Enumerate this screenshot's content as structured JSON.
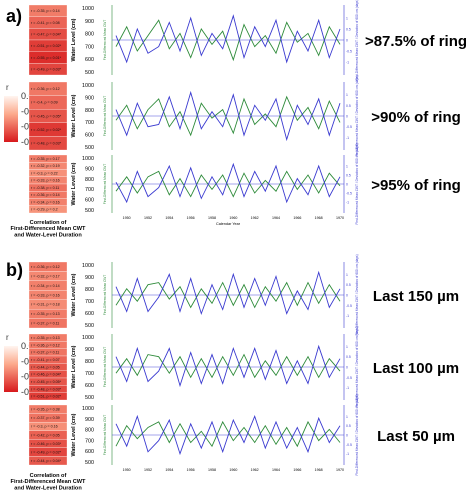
{
  "panels": [
    {
      "letter": "a)",
      "corr_title": "Correlation of\nFirst-Differenced Mean CWT\nand Water-Level Duration",
      "colorbar": {
        "label": "r",
        "ticks": [
          "0.0",
          "-0.2",
          "-0.4",
          "-0.6"
        ],
        "range": [
          -0.6,
          0.0
        ]
      }
    },
    {
      "letter": "b)",
      "corr_title": "Correlation of\nFirst-Differenced Mean CWT\nand Water-Level Duration",
      "colorbar": {
        "label": "r",
        "ticks": [
          "0.0",
          "-0.2",
          "-0.4",
          "-0.6"
        ],
        "range": [
          -0.6,
          0.0
        ]
      }
    }
  ],
  "x_axis_label": "Calendar Year",
  "chart_data": [
    {
      "type": "line",
      "group": "a",
      "row": 0,
      "label": ">87.5% of ring",
      "ylabel_left": "Water Level (cm)",
      "ylim_left": [
        500,
        1000
      ],
      "ylabel_right": "First-Differenced Mean CWT / Deviation of 600 cm (days)",
      "ylim_right": [
        -1.5,
        1.5
      ],
      "yticks_left": [
        "1000",
        "900",
        "800",
        "700",
        "600",
        "500"
      ],
      "x": [
        1949,
        1950,
        1951,
        1952,
        1953,
        1954,
        1955,
        1956,
        1957,
        1958,
        1959,
        1960,
        1961,
        1962,
        1963,
        1964,
        1965,
        1966,
        1967,
        1968,
        1969,
        1970
      ],
      "xticks": [
        "1950",
        "1952",
        "1954",
        "1956",
        "1958",
        "1960",
        "1962",
        "1964",
        "1966",
        "1968",
        "1970"
      ],
      "series": [
        {
          "color": "#2e8b3a",
          "values": [
            -0.3,
            0.6,
            -0.5,
            0.2,
            0.9,
            -0.4,
            0.3,
            -0.8,
            0.5,
            -0.2,
            0.4,
            -0.9,
            0.7,
            -0.3,
            0.2,
            -0.6,
            0.8,
            -0.1,
            0.3,
            -0.7,
            0.6,
            -0.2
          ]
        },
        {
          "color": "#3a3ad0",
          "values": [
            0.2,
            -1.0,
            0.5,
            -0.6,
            -0.3,
            0.8,
            -0.5,
            1.0,
            -0.7,
            0.3,
            -0.4,
            1.1,
            -0.8,
            0.6,
            -0.3,
            0.9,
            -1.0,
            0.4,
            -0.5,
            0.9,
            -0.8,
            0.5
          ]
        }
      ],
      "correlations": [
        {
          "text": "r = -0.35, p = 0.14",
          "value": -0.35
        },
        {
          "text": "r = -0.41, p = 0.08",
          "value": -0.41
        },
        {
          "text": "r = -0.47, p = 0.04*",
          "value": -0.47
        },
        {
          "text": "r = -0.51, p = 0.02*",
          "value": -0.51
        },
        {
          "text": "r = -0.55, p = 0.01*",
          "value": -0.55
        },
        {
          "text": "r = -0.49, p = 0.03*",
          "value": -0.49
        }
      ]
    },
    {
      "type": "line",
      "group": "a",
      "row": 1,
      "label": ">90% of ring",
      "ylabel_left": "Water Level (cm)",
      "ylim_left": [
        500,
        1000
      ],
      "ylabel_right": "First-Differenced Mean CWT / Deviation of 600 cm (days)",
      "ylim_right": [
        -1.5,
        1.5
      ],
      "yticks_left": [
        "1000",
        "900",
        "800",
        "700",
        "600",
        "500"
      ],
      "x": [
        1949,
        1950,
        1951,
        1952,
        1953,
        1954,
        1955,
        1956,
        1957,
        1958,
        1959,
        1960,
        1961,
        1962,
        1963,
        1964,
        1965,
        1966,
        1967,
        1968,
        1969,
        1970
      ],
      "xticks": [
        "1950",
        "1952",
        "1954",
        "1956",
        "1958",
        "1960",
        "1962",
        "1964",
        "1966",
        "1968",
        "1970"
      ],
      "series": [
        {
          "color": "#2e8b3a",
          "values": [
            -0.2,
            0.5,
            -0.6,
            0.3,
            0.8,
            -0.5,
            0.2,
            -0.9,
            0.6,
            -0.1,
            0.3,
            -0.8,
            0.8,
            -0.4,
            0.1,
            -0.5,
            0.9,
            -0.2,
            0.4,
            -0.6,
            0.7,
            -0.3
          ]
        },
        {
          "color": "#3a3ad0",
          "values": [
            0.3,
            -0.9,
            0.6,
            -0.5,
            -0.4,
            0.9,
            -0.6,
            1.1,
            -0.6,
            0.2,
            -0.5,
            1.0,
            -0.9,
            0.5,
            -0.2,
            0.8,
            -1.1,
            0.5,
            -0.4,
            0.8,
            -0.9,
            0.6
          ]
        }
      ],
      "correlations": [
        {
          "text": "r = -0.36, p = 0.12",
          "value": -0.36
        },
        {
          "text": "r = -0.4, p = 0.09",
          "value": -0.4
        },
        {
          "text": "r = -0.45, p = 0.05*",
          "value": -0.45
        },
        {
          "text": "r = -0.52, p = 0.02*",
          "value": -0.52
        },
        {
          "text": "r = -0.48, p = 0.03*",
          "value": -0.48
        }
      ]
    },
    {
      "type": "line",
      "group": "a",
      "row": 2,
      "label": ">95% of ring",
      "ylabel_left": "Water Level (cm)",
      "ylim_left": [
        500,
        1000
      ],
      "ylabel_right": "First-Differenced Mean CWT / Deviation of 600 cm (days)",
      "ylim_right": [
        -1.5,
        1.5
      ],
      "yticks_left": [
        "1000",
        "900",
        "800",
        "700",
        "600",
        "500"
      ],
      "x": [
        1949,
        1950,
        1951,
        1952,
        1953,
        1954,
        1955,
        1956,
        1957,
        1958,
        1959,
        1960,
        1961,
        1962,
        1963,
        1964,
        1965,
        1966,
        1967,
        1968,
        1969,
        1970
      ],
      "xticks": [
        "1950",
        "1952",
        "1954",
        "1956",
        "1958",
        "1960",
        "1962",
        "1964",
        "1966",
        "1968",
        "1970"
      ],
      "series": [
        {
          "color": "#2e8b3a",
          "values": [
            -0.4,
            0.4,
            -0.5,
            0.4,
            0.7,
            -0.6,
            0.3,
            -0.7,
            0.5,
            -0.3,
            0.5,
            -0.7,
            0.6,
            -0.5,
            0.2,
            -0.4,
            0.7,
            -0.3,
            0.5,
            -0.5,
            0.6,
            -0.1
          ]
        },
        {
          "color": "#3a3ad0",
          "values": [
            0.1,
            -1.0,
            0.7,
            -0.7,
            -0.2,
            1.0,
            -0.7,
            0.9,
            -0.8,
            0.4,
            -0.6,
            1.1,
            -0.7,
            0.7,
            -0.4,
            1.0,
            -1.0,
            0.3,
            -0.6,
            1.0,
            -0.7,
            0.4
          ]
        }
      ],
      "correlations": [
        {
          "text": "r = -0.35, p = 0.17",
          "value": -0.35
        },
        {
          "text": "r = -0.32, p = 0.19",
          "value": -0.32
        },
        {
          "text": "r = -0.3, p = 0.22",
          "value": -0.3
        },
        {
          "text": "r = -0.33, p = 0.16",
          "value": -0.33
        },
        {
          "text": "r = -0.38, p = 0.11",
          "value": -0.38
        },
        {
          "text": "r = -0.36, p = 0.14",
          "value": -0.36
        },
        {
          "text": "r = -0.34, p = 0.16",
          "value": -0.34
        },
        {
          "text": "r = -0.29, p = 0.2",
          "value": -0.29
        }
      ]
    },
    {
      "type": "line",
      "group": "b",
      "row": 0,
      "label": "Last 150 µm",
      "ylabel_left": "Water Level (cm)",
      "ylim_left": [
        500,
        1000
      ],
      "ylabel_right": "First-Differenced Mean CWT / Deviation of 600 cm (days)",
      "ylim_right": [
        -1.5,
        1.5
      ],
      "yticks_left": [
        "1000",
        "900",
        "800",
        "700",
        "600",
        "500"
      ],
      "x": [
        1949,
        1950,
        1951,
        1952,
        1953,
        1954,
        1955,
        1956,
        1957,
        1958,
        1959,
        1960,
        1961,
        1962,
        1963,
        1964,
        1965,
        1966,
        1967,
        1968,
        1969,
        1970
      ],
      "xticks": [
        "1950",
        "1952",
        "1954",
        "1956",
        "1958",
        "1960",
        "1962",
        "1964",
        "1966",
        "1968",
        "1970"
      ],
      "series": [
        {
          "color": "#2e8b3a",
          "values": [
            -0.5,
            0.3,
            -0.3,
            0.5,
            0.6,
            -0.2,
            0.4,
            -0.6,
            0.3,
            -0.4,
            0.6,
            -0.5,
            0.5,
            -0.6,
            0.4,
            -0.3,
            0.6,
            -0.5,
            0.6,
            -0.4,
            0.5,
            -0.3
          ]
        },
        {
          "color": "#3a3ad0",
          "values": [
            0.4,
            -0.8,
            0.8,
            -0.8,
            -0.1,
            1.0,
            -0.8,
            0.8,
            -0.9,
            0.5,
            -0.7,
            1.0,
            -0.6,
            0.8,
            -0.5,
            0.9,
            -0.9,
            0.2,
            -0.7,
            1.1,
            -0.6,
            0.3
          ]
        }
      ],
      "correlations": [
        {
          "text": "r = -0.36, p = 0.12",
          "value": -0.36
        },
        {
          "text": "r = -0.32, p = 0.17",
          "value": -0.32
        },
        {
          "text": "r = -0.34, p = 0.14",
          "value": -0.34
        },
        {
          "text": "r = -0.33, p = 0.16",
          "value": -0.33
        },
        {
          "text": "r = -0.31, p = 0.18",
          "value": -0.31
        },
        {
          "text": "r = -0.35, p = 0.13",
          "value": -0.35
        },
        {
          "text": "r = -0.37, p = 0.11",
          "value": -0.37
        }
      ]
    },
    {
      "type": "line",
      "group": "b",
      "row": 1,
      "label": "Last 100 µm",
      "ylabel_left": "Water Level (cm)",
      "ylim_left": [
        500,
        1000
      ],
      "ylabel_right": "First-Differenced Mean CWT / Deviation of 600 cm (days)",
      "ylim_right": [
        -1.5,
        1.5
      ],
      "yticks_left": [
        "1000",
        "900",
        "800",
        "700",
        "600",
        "500"
      ],
      "x": [
        1949,
        1950,
        1951,
        1952,
        1953,
        1954,
        1955,
        1956,
        1957,
        1958,
        1959,
        1960,
        1961,
        1962,
        1963,
        1964,
        1965,
        1966,
        1967,
        1968,
        1969,
        1970
      ],
      "xticks": [
        "1950",
        "1952",
        "1954",
        "1956",
        "1958",
        "1960",
        "1962",
        "1964",
        "1966",
        "1968",
        "1970"
      ],
      "series": [
        {
          "color": "#2e8b3a",
          "values": [
            -0.3,
            0.4,
            -0.4,
            0.6,
            0.5,
            -0.3,
            0.5,
            -0.5,
            0.4,
            -0.5,
            0.5,
            -0.4,
            0.6,
            -0.5,
            0.3,
            -0.4,
            0.5,
            -0.4,
            0.5,
            -0.5,
            0.4,
            -0.2
          ]
        },
        {
          "color": "#3a3ad0",
          "values": [
            0.5,
            -0.7,
            0.9,
            -0.7,
            -0.2,
            0.9,
            -0.9,
            0.7,
            -0.8,
            0.6,
            -0.8,
            0.9,
            -0.5,
            0.9,
            -0.6,
            0.8,
            -0.8,
            0.3,
            -0.8,
            1.0,
            -0.5,
            0.4
          ]
        }
      ],
      "correlations": [
        {
          "text": "r = -0.35, p = 0.13",
          "value": -0.35
        },
        {
          "text": "r = -0.36, p = 0.12",
          "value": -0.36
        },
        {
          "text": "r = -0.37, p = 0.11",
          "value": -0.37
        },
        {
          "text": "r = -0.41, p = 0.07",
          "value": -0.41
        },
        {
          "text": "r = -0.44, p = 0.05",
          "value": -0.44
        },
        {
          "text": "r = -0.46, p = 0.04*",
          "value": -0.46
        },
        {
          "text": "r = -0.45, p = 0.05*",
          "value": -0.45
        },
        {
          "text": "r = -0.48, p = 0.03*",
          "value": -0.48
        },
        {
          "text": "r = -0.51, p = 0.02*",
          "value": -0.51
        }
      ]
    },
    {
      "type": "line",
      "group": "b",
      "row": 2,
      "label": "Last 50 µm",
      "ylabel_left": "Water Level (cm)",
      "ylim_left": [
        500,
        1000
      ],
      "ylabel_right": "First-Differenced Mean CWT / Deviation of 600 cm (days)",
      "ylim_right": [
        -1.5,
        1.5
      ],
      "yticks_left": [
        "1000",
        "900",
        "800",
        "700",
        "600",
        "500"
      ],
      "x": [
        1949,
        1950,
        1951,
        1952,
        1953,
        1954,
        1955,
        1956,
        1957,
        1958,
        1959,
        1960,
        1961,
        1962,
        1963,
        1964,
        1965,
        1966,
        1967,
        1968,
        1969,
        1970
      ],
      "xticks": [
        "1950",
        "1952",
        "1954",
        "1956",
        "1958",
        "1960",
        "1962",
        "1964",
        "1966",
        "1968",
        "1970"
      ],
      "series": [
        {
          "color": "#2e8b3a",
          "values": [
            -0.6,
            0.5,
            -0.2,
            0.4,
            0.7,
            -0.4,
            0.6,
            -0.4,
            0.2,
            -0.6,
            0.7,
            -0.3,
            0.4,
            -0.4,
            0.5,
            -0.5,
            0.4,
            -0.6,
            0.7,
            -0.3,
            0.3,
            -0.4
          ]
        },
        {
          "color": "#3a3ad0",
          "values": [
            0.6,
            -0.6,
            1.0,
            -0.9,
            -0.3,
            0.8,
            -1.0,
            0.6,
            -0.7,
            0.7,
            -0.9,
            0.8,
            -0.4,
            1.0,
            -0.7,
            0.7,
            -0.7,
            0.4,
            -0.9,
            0.9,
            -0.4,
            0.5
          ]
        }
      ],
      "correlations": [
        {
          "text": "r = -0.35, p = 0.38",
          "value": -0.35
        },
        {
          "text": "r = -0.37, p = 0.39",
          "value": -0.37
        },
        {
          "text": "r = -0.3, p = 0.16",
          "value": -0.3
        },
        {
          "text": "r = -0.42, p = 0.05",
          "value": -0.42
        },
        {
          "text": "r = -0.46, p = 0.03*",
          "value": -0.46
        },
        {
          "text": "r = -0.49, p = 0.02*",
          "value": -0.49
        },
        {
          "text": "r = -0.44, p = 0.04*",
          "value": -0.44
        }
      ]
    }
  ]
}
